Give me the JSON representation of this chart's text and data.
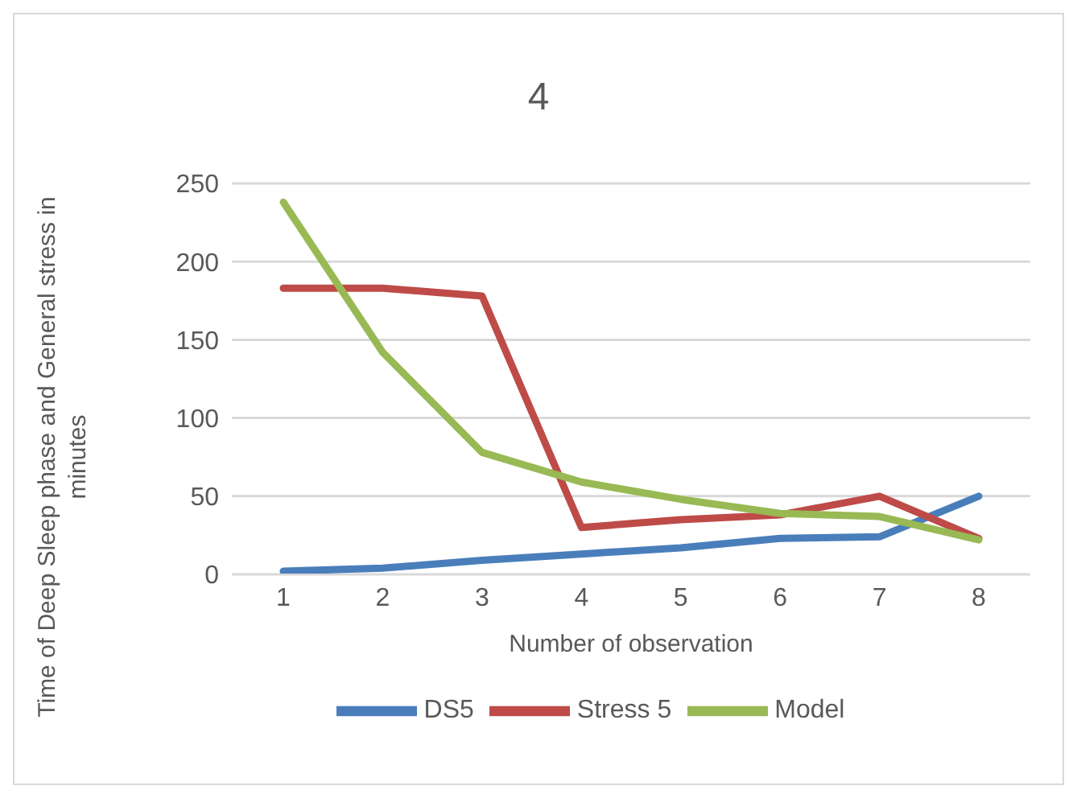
{
  "chart_data": {
    "type": "line",
    "title": "4",
    "xlabel": "Number of observation",
    "ylabel": "Time of Deep Sleep phase and General stress in minutes",
    "categories": [
      "1",
      "2",
      "3",
      "4",
      "5",
      "6",
      "7",
      "8"
    ],
    "series": [
      {
        "name": "DS5",
        "color": "#4a7ebb",
        "values": [
          2,
          4,
          9,
          13,
          17,
          23,
          24,
          50
        ]
      },
      {
        "name": "Stress 5",
        "color": "#be4b48",
        "values": [
          183,
          183,
          178,
          30,
          35,
          38,
          50,
          23
        ]
      },
      {
        "name": "Model",
        "color": "#98b954",
        "values": [
          238,
          142,
          78,
          59,
          48,
          39,
          37,
          22
        ]
      }
    ],
    "ylim": [
      0,
      250
    ],
    "yticks": [
      0,
      50,
      100,
      150,
      200,
      250
    ],
    "grid": "y",
    "legend": "bottom",
    "marker": "none",
    "line_style": "solid"
  }
}
